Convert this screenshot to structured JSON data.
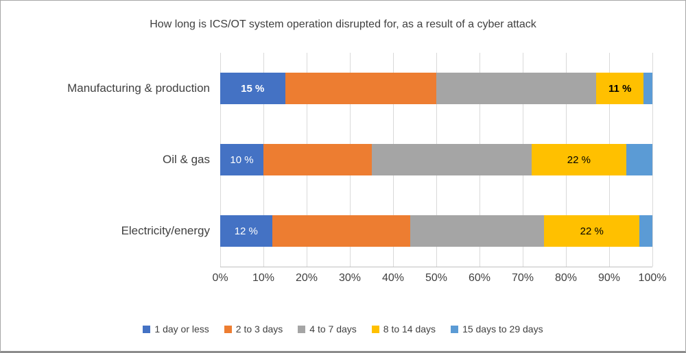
{
  "title": "How long is ICS/OT system operation disrupted for, as a result of a cyber attack",
  "chart_data": {
    "type": "bar",
    "orientation": "horizontal",
    "stacked": true,
    "title": "How long is ICS/OT system operation disrupted for, as a result of a cyber attack",
    "categories": [
      "Manufacturing & production",
      "Oil & gas",
      "Electricity/energy"
    ],
    "series": [
      {
        "name": "1 day or less",
        "color": "#4472C4",
        "values": [
          15,
          10,
          12
        ],
        "labels": [
          {
            "text": "15 %",
            "color": "#ffffff",
            "bold": true
          },
          {
            "text": "10 %",
            "color": "#ffffff",
            "bold": false
          },
          {
            "text": "12 %",
            "color": "#ffffff",
            "bold": false
          }
        ]
      },
      {
        "name": "2 to 3 days",
        "color": "#ED7D31",
        "values": [
          35,
          25,
          32
        ],
        "labels": [
          null,
          null,
          null
        ]
      },
      {
        "name": "4 to 7 days",
        "color": "#A5A5A5",
        "values": [
          37,
          37,
          31
        ],
        "labels": [
          null,
          null,
          null
        ]
      },
      {
        "name": "8 to 14 days",
        "color": "#FFC000",
        "values": [
          11,
          22,
          22
        ],
        "labels": [
          {
            "text": "11 %",
            "color": "#000000",
            "bold": true
          },
          {
            "text": "22 %",
            "color": "#000000",
            "bold": false
          },
          {
            "text": "22 %",
            "color": "#000000",
            "bold": false
          }
        ]
      },
      {
        "name": "15 days to 29 days",
        "color": "#5B9BD5",
        "values": [
          2,
          6,
          3
        ],
        "labels": [
          null,
          null,
          null
        ]
      }
    ],
    "x_ticks": [
      "0%",
      "10%",
      "20%",
      "30%",
      "40%",
      "50%",
      "60%",
      "70%",
      "80%",
      "90%",
      "100%"
    ],
    "xlim": [
      0,
      100
    ],
    "grid": true,
    "legend_position": "bottom"
  }
}
